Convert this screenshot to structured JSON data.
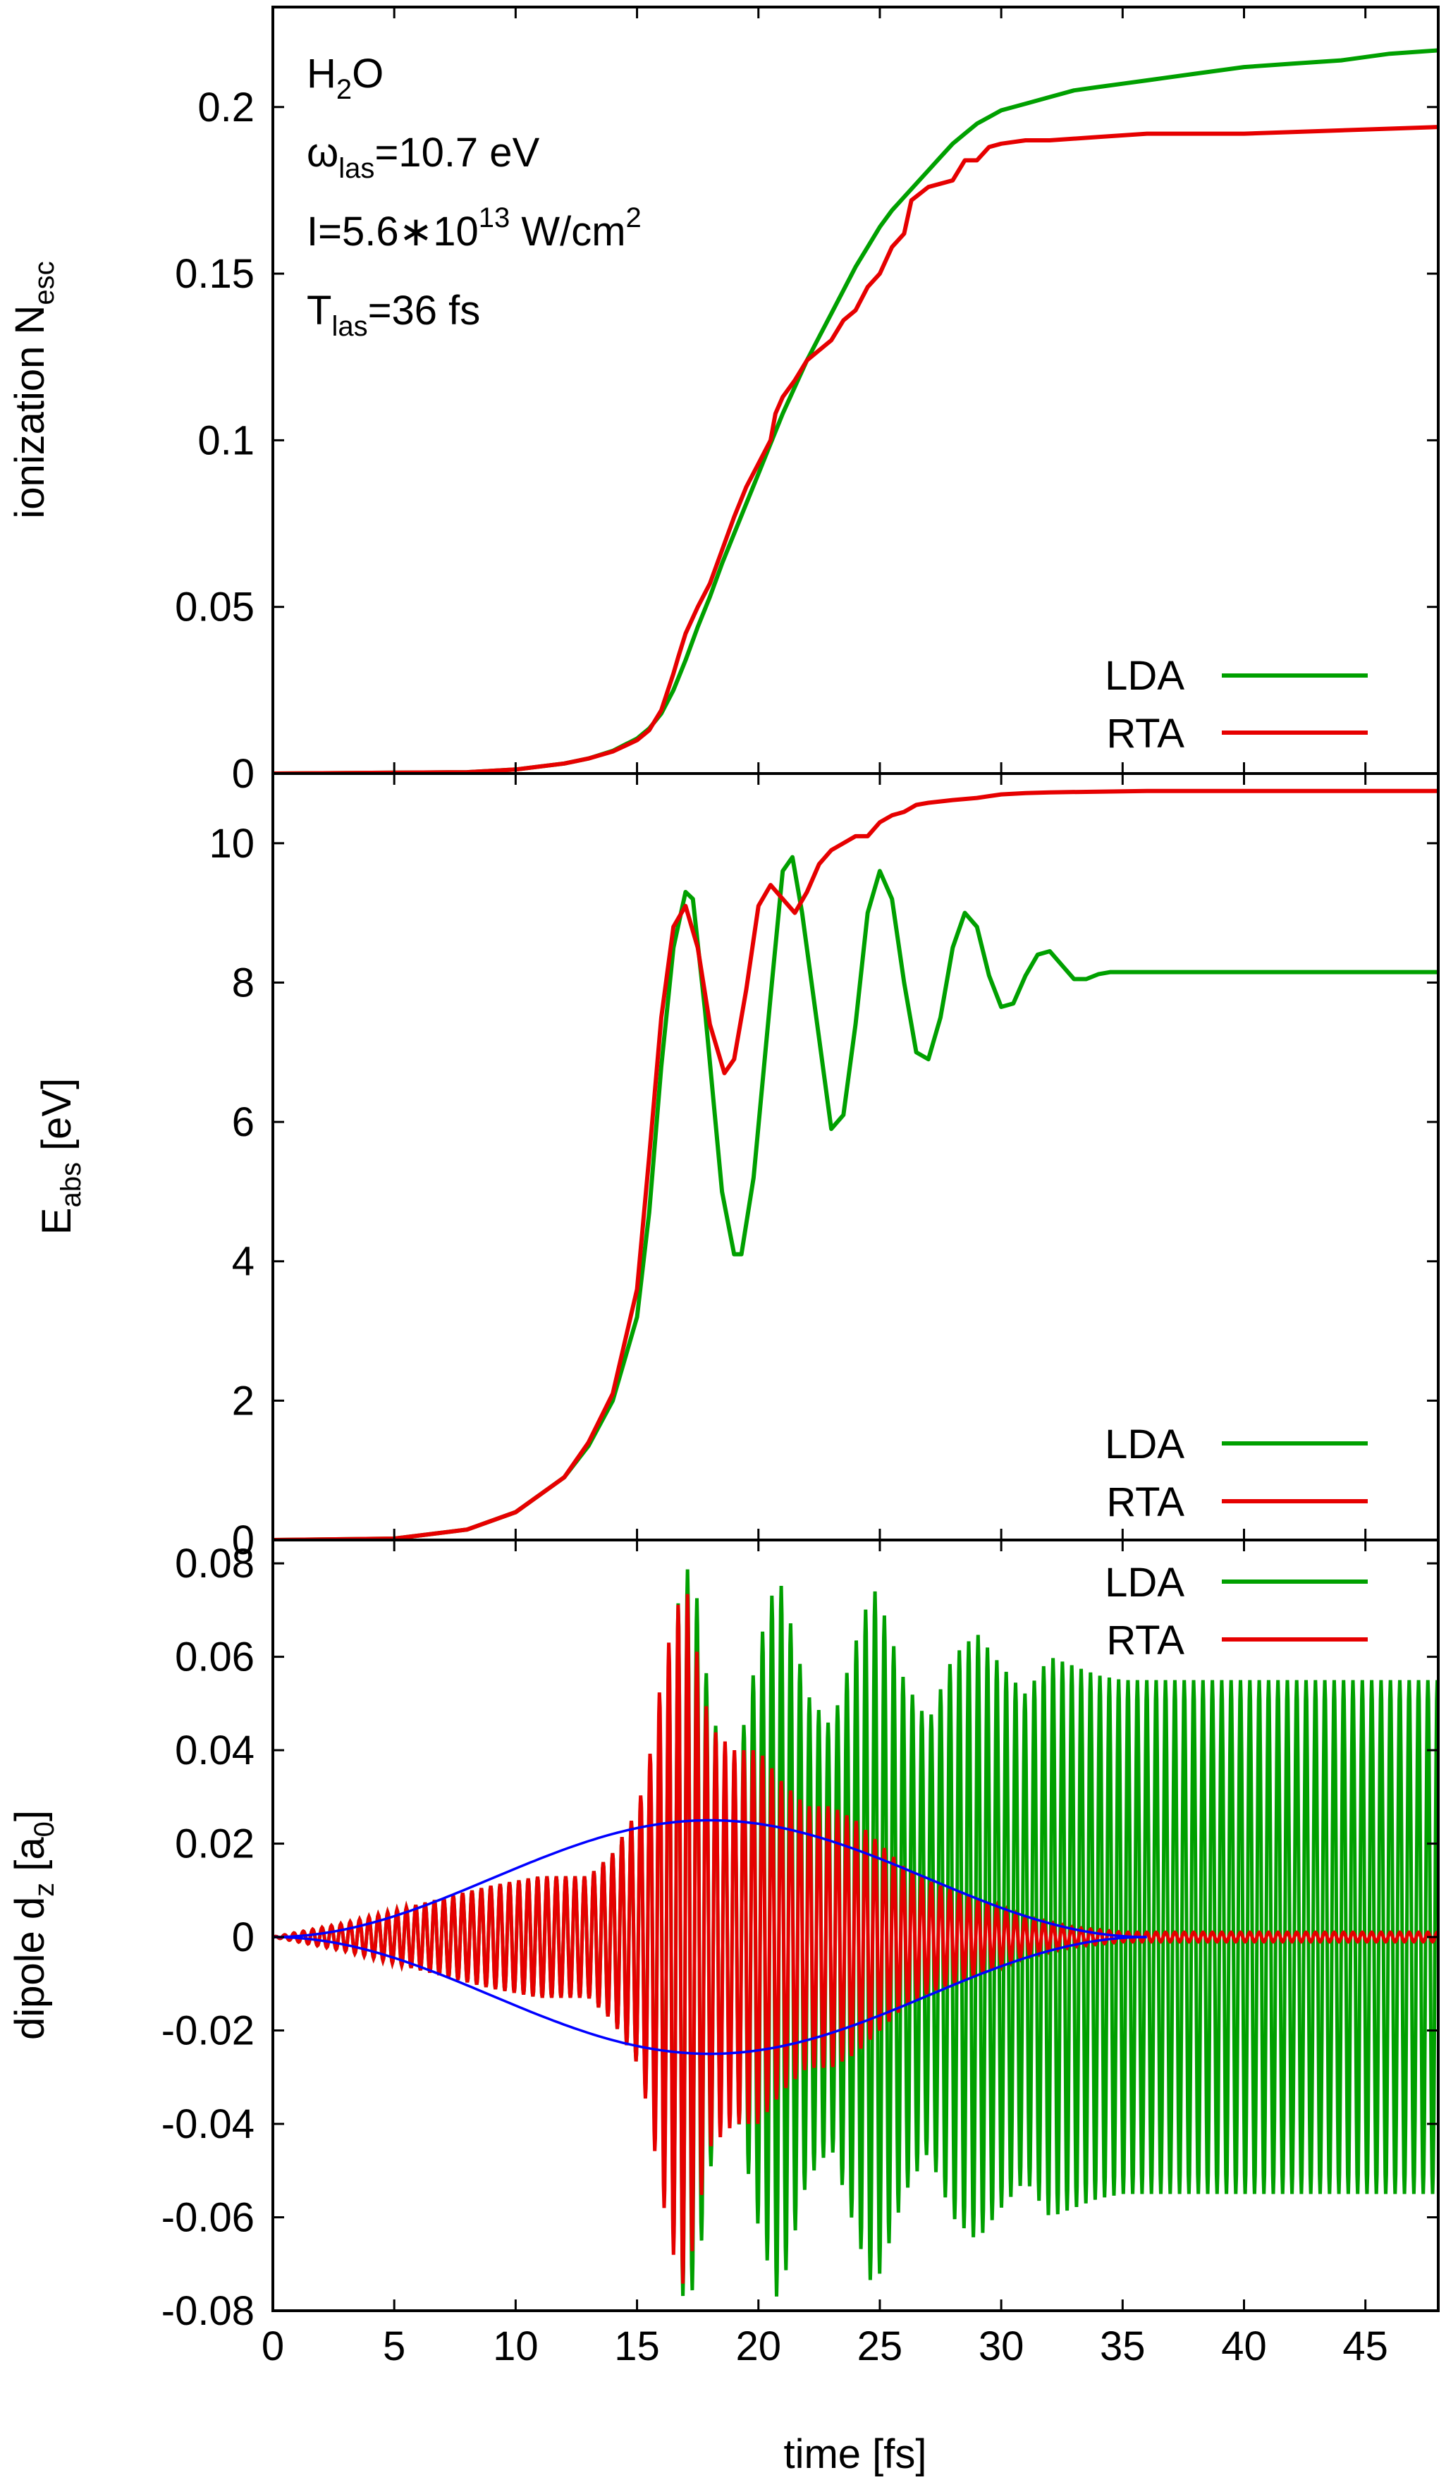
{
  "chart_data": [
    {
      "type": "line",
      "ylabel": "ionization",
      "ylabel_main": "N",
      "ylabel_sub": "esc",
      "xlim": [
        0,
        48
      ],
      "ylim": [
        0,
        0.23
      ],
      "yticks": [
        0,
        0.05,
        0.1,
        0.15,
        0.2
      ],
      "ytick_labels": [
        "0",
        "0.05",
        "0.1",
        "0.15",
        "0.2"
      ],
      "legend_position": "bottom-right",
      "annotation": {
        "molecule_main1": "H",
        "molecule_sub": "2",
        "molecule_main2": "O",
        "omega_symbol": "ω",
        "omega_sub": "las",
        "omega_value": "=10.7 eV",
        "intensity_main": "I=5.6∗10",
        "intensity_sup": "13",
        "intensity_unit": " W/cm",
        "intensity_unit_sup": "2",
        "tlas_main": "T",
        "tlas_sub": "las",
        "tlas_value": "=36 fs"
      },
      "series": [
        {
          "name": "LDA",
          "color": "#00a000",
          "x": [
            0,
            8,
            10,
            12,
            13,
            14,
            15,
            15.5,
            16,
            16.5,
            17,
            17.5,
            18,
            18.5,
            19,
            19.5,
            20,
            20.5,
            21,
            21.5,
            22,
            22.5,
            23,
            23.5,
            24,
            24.5,
            25,
            25.5,
            26,
            26.5,
            27,
            27.5,
            28,
            28.5,
            29,
            29.5,
            30,
            31,
            32,
            33,
            34,
            35,
            36,
            38,
            40,
            42,
            44,
            46,
            48
          ],
          "y": [
            0,
            0.0004,
            0.0012,
            0.003,
            0.0045,
            0.0068,
            0.0105,
            0.0135,
            0.018,
            0.025,
            0.034,
            0.044,
            0.053,
            0.063,
            0.072,
            0.081,
            0.09,
            0.099,
            0.108,
            0.116,
            0.124,
            0.131,
            0.138,
            0.145,
            0.152,
            0.158,
            0.164,
            0.169,
            0.173,
            0.177,
            0.181,
            0.185,
            0.189,
            0.192,
            0.195,
            0.197,
            0.199,
            0.201,
            0.203,
            0.205,
            0.206,
            0.207,
            0.208,
            0.21,
            0.212,
            0.213,
            0.214,
            0.216,
            0.217
          ]
        },
        {
          "name": "RTA",
          "color": "#e60000",
          "x": [
            0,
            8,
            10,
            12,
            13,
            14,
            15,
            15.5,
            16,
            16.5,
            16.7,
            17,
            17.5,
            18,
            18.5,
            19,
            19.5,
            20,
            20.5,
            20.7,
            21,
            21.5,
            22,
            22.5,
            23,
            23.5,
            24,
            24.5,
            25,
            25.5,
            26,
            26.3,
            27,
            28,
            28.5,
            29,
            29.5,
            30,
            31,
            32,
            34,
            36,
            40,
            44,
            48
          ],
          "y": [
            0,
            0.0004,
            0.0012,
            0.003,
            0.0045,
            0.0066,
            0.01,
            0.013,
            0.019,
            0.03,
            0.035,
            0.042,
            0.05,
            0.057,
            0.067,
            0.077,
            0.086,
            0.093,
            0.1,
            0.108,
            0.113,
            0.118,
            0.124,
            0.127,
            0.13,
            0.136,
            0.139,
            0.146,
            0.15,
            0.158,
            0.162,
            0.172,
            0.176,
            0.178,
            0.184,
            0.184,
            0.188,
            0.189,
            0.19,
            0.19,
            0.191,
            0.192,
            0.192,
            0.193,
            0.194
          ]
        }
      ]
    },
    {
      "type": "line",
      "ylabel_main": "E",
      "ylabel_sub": "abs",
      "ylabel_rest": " [eV]",
      "xlim": [
        0,
        48
      ],
      "ylim": [
        0,
        11
      ],
      "yticks": [
        0,
        2,
        4,
        6,
        8,
        10
      ],
      "ytick_labels": [
        "0",
        "2",
        "4",
        "6",
        "8",
        "10"
      ],
      "legend_position": "bottom-right",
      "series": [
        {
          "name": "LDA",
          "color": "#00a000",
          "x": [
            0,
            5,
            8,
            10,
            12,
            13,
            14,
            15,
            15.5,
            16,
            16.5,
            17,
            17.3,
            17.8,
            18.5,
            19,
            19.3,
            19.8,
            20.5,
            21,
            21.4,
            21.8,
            22.5,
            23,
            23.5,
            24,
            24.5,
            25,
            25.5,
            26,
            26.5,
            27,
            27.5,
            28,
            28.5,
            29,
            29.5,
            30,
            30.5,
            31,
            31.5,
            32,
            32.5,
            33,
            33.5,
            34,
            34.5,
            35,
            36,
            40,
            44,
            48
          ],
          "y": [
            0,
            0.02,
            0.15,
            0.4,
            0.9,
            1.35,
            2.0,
            3.2,
            4.7,
            6.8,
            8.5,
            9.3,
            9.2,
            7.6,
            5.0,
            4.1,
            4.1,
            5.2,
            7.8,
            9.6,
            9.8,
            9.0,
            7.2,
            5.9,
            6.1,
            7.4,
            9.0,
            9.6,
            9.2,
            8.0,
            7.0,
            6.9,
            7.5,
            8.5,
            9.0,
            8.8,
            8.1,
            7.65,
            7.7,
            8.1,
            8.4,
            8.45,
            8.25,
            8.05,
            8.05,
            8.12,
            8.15,
            8.15,
            8.15,
            8.15,
            8.15,
            8.15
          ]
        },
        {
          "name": "RTA",
          "color": "#e60000",
          "x": [
            0,
            5,
            8,
            10,
            12,
            13,
            14,
            15,
            15.5,
            16,
            16.5,
            17,
            17.5,
            18,
            18.6,
            19,
            19.5,
            20,
            20.5,
            21,
            21.5,
            22,
            22.5,
            23,
            23.5,
            24,
            24.5,
            25,
            25.5,
            26,
            26.5,
            27,
            28,
            29,
            30,
            31,
            32,
            34,
            36,
            40,
            44,
            48
          ],
          "y": [
            0,
            0.02,
            0.15,
            0.4,
            0.9,
            1.4,
            2.1,
            3.6,
            5.5,
            7.5,
            8.8,
            9.1,
            8.5,
            7.4,
            6.7,
            6.9,
            7.9,
            9.1,
            9.4,
            9.2,
            9.0,
            9.3,
            9.7,
            9.9,
            10.0,
            10.1,
            10.1,
            10.3,
            10.4,
            10.45,
            10.55,
            10.58,
            10.62,
            10.65,
            10.7,
            10.72,
            10.73,
            10.74,
            10.75,
            10.75,
            10.75,
            10.75
          ]
        }
      ]
    },
    {
      "type": "line",
      "ylabel": "dipole",
      "ylabel_main": "d",
      "ylabel_sub": "z",
      "ylabel_rest_a": " [a",
      "ylabel_sub2": "0",
      "ylabel_rest_b": "]",
      "xlabel": "time [fs]",
      "xlim": [
        0,
        48
      ],
      "ylim": [
        -0.08,
        0.085
      ],
      "xticks": [
        0,
        5,
        10,
        15,
        20,
        25,
        30,
        35,
        40,
        45
      ],
      "xtick_labels": [
        "0",
        "5",
        "10",
        "15",
        "20",
        "25",
        "30",
        "35",
        "40",
        "45"
      ],
      "yticks": [
        -0.08,
        -0.06,
        -0.04,
        -0.02,
        0,
        0.02,
        0.04,
        0.06,
        0.08
      ],
      "ytick_labels": [
        "-0.08",
        "-0.06",
        "-0.04",
        "-0.02",
        "0",
        "0.02",
        "0.04",
        "0.06",
        "0.08"
      ],
      "legend_position": "top-right",
      "oscillation_period_fs": 0.386,
      "series": [
        {
          "name": "LDA",
          "color": "#00a000",
          "envelope_x": [
            0,
            3,
            6,
            9,
            11,
            13,
            14,
            15,
            15.5,
            16,
            16.5,
            17,
            17.5,
            18,
            18.7,
            19.2,
            20,
            20.8,
            21.2,
            22,
            23,
            24,
            24.7,
            25,
            26,
            27,
            28,
            29,
            30,
            31,
            32,
            33,
            34,
            35,
            36,
            48
          ],
          "envelope_y": [
            0,
            0.003,
            0.007,
            0.011,
            0.013,
            0.013,
            0.018,
            0.027,
            0.036,
            0.05,
            0.066,
            0.08,
            0.072,
            0.05,
            0.036,
            0.04,
            0.062,
            0.078,
            0.07,
            0.052,
            0.045,
            0.063,
            0.075,
            0.072,
            0.055,
            0.046,
            0.06,
            0.065,
            0.058,
            0.052,
            0.06,
            0.058,
            0.056,
            0.055,
            0.055,
            0.055
          ]
        },
        {
          "name": "RTA",
          "color": "#e60000",
          "envelope_x": [
            0,
            3,
            6,
            9,
            11,
            13,
            14,
            15,
            15.5,
            16,
            16.5,
            17,
            17.5,
            18,
            19,
            20,
            21,
            22,
            23,
            24,
            25,
            26,
            27,
            28,
            29,
            30,
            31,
            32,
            33,
            34,
            35,
            48
          ],
          "envelope_y": [
            0,
            0.003,
            0.007,
            0.011,
            0.013,
            0.013,
            0.018,
            0.027,
            0.038,
            0.055,
            0.068,
            0.076,
            0.06,
            0.045,
            0.04,
            0.04,
            0.033,
            0.028,
            0.028,
            0.025,
            0.02,
            0.015,
            0.012,
            0.01,
            0.008,
            0.006,
            0.004,
            0.003,
            0.002,
            0.0015,
            0.001,
            0.001
          ]
        },
        {
          "color": "#0000ff",
          "type": "envelope",
          "amplitude": 0.025,
          "peak_x": 18,
          "duration_fs": 36
        }
      ]
    }
  ]
}
